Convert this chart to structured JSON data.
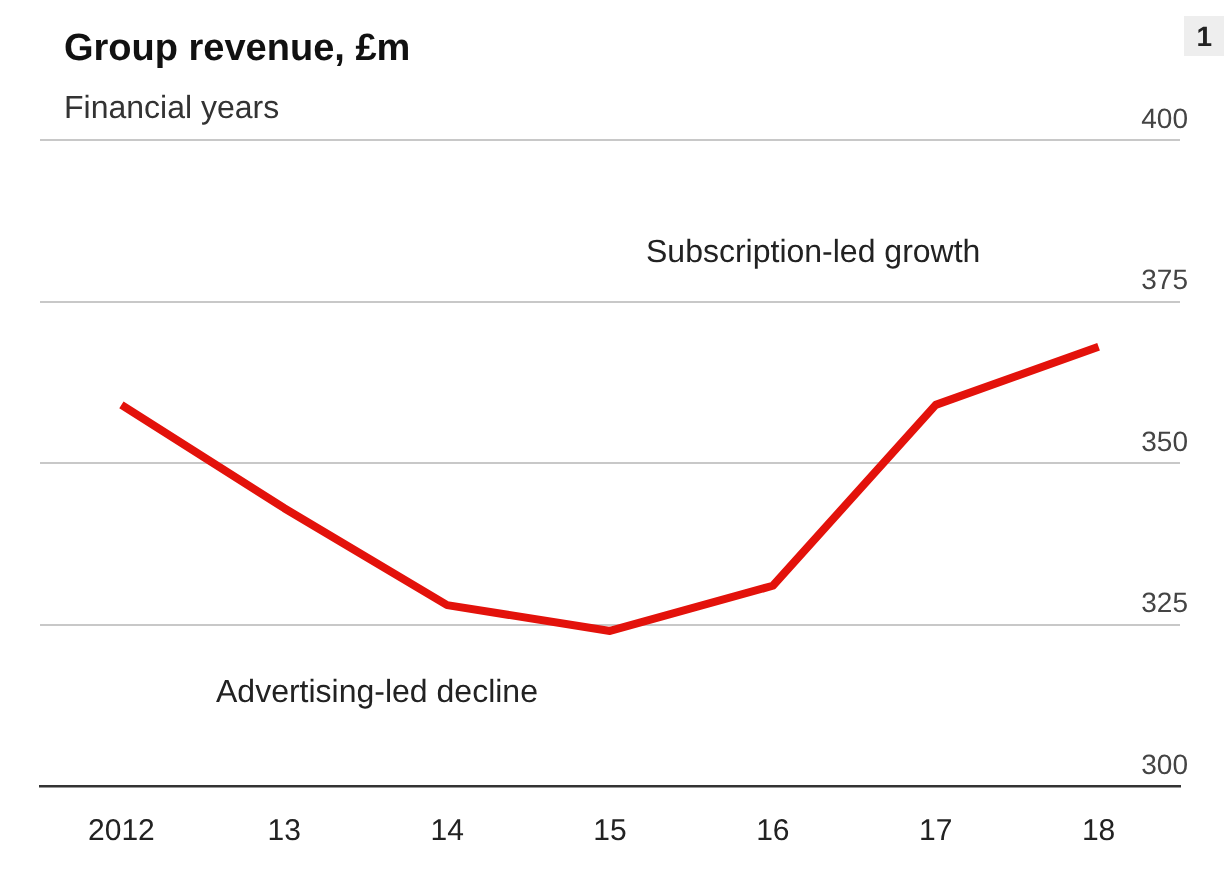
{
  "chart_data": {
    "type": "line",
    "title": "Group revenue, £m",
    "subtitle": "Financial years",
    "categories": [
      "2012",
      "13",
      "14",
      "15",
      "16",
      "17",
      "18"
    ],
    "series": [
      {
        "color": "#e3120b",
        "values": [
          359,
          343,
          328,
          324,
          331,
          359,
          368
        ]
      }
    ],
    "ylim": [
      300,
      400
    ],
    "yticks": [
      300,
      325,
      350,
      375,
      400
    ],
    "grid": "y",
    "legend": false,
    "marker": "none",
    "line_style": "solid",
    "annotations": [
      "Subscription-led growth",
      "Advertising-led decline",
      "1"
    ]
  }
}
